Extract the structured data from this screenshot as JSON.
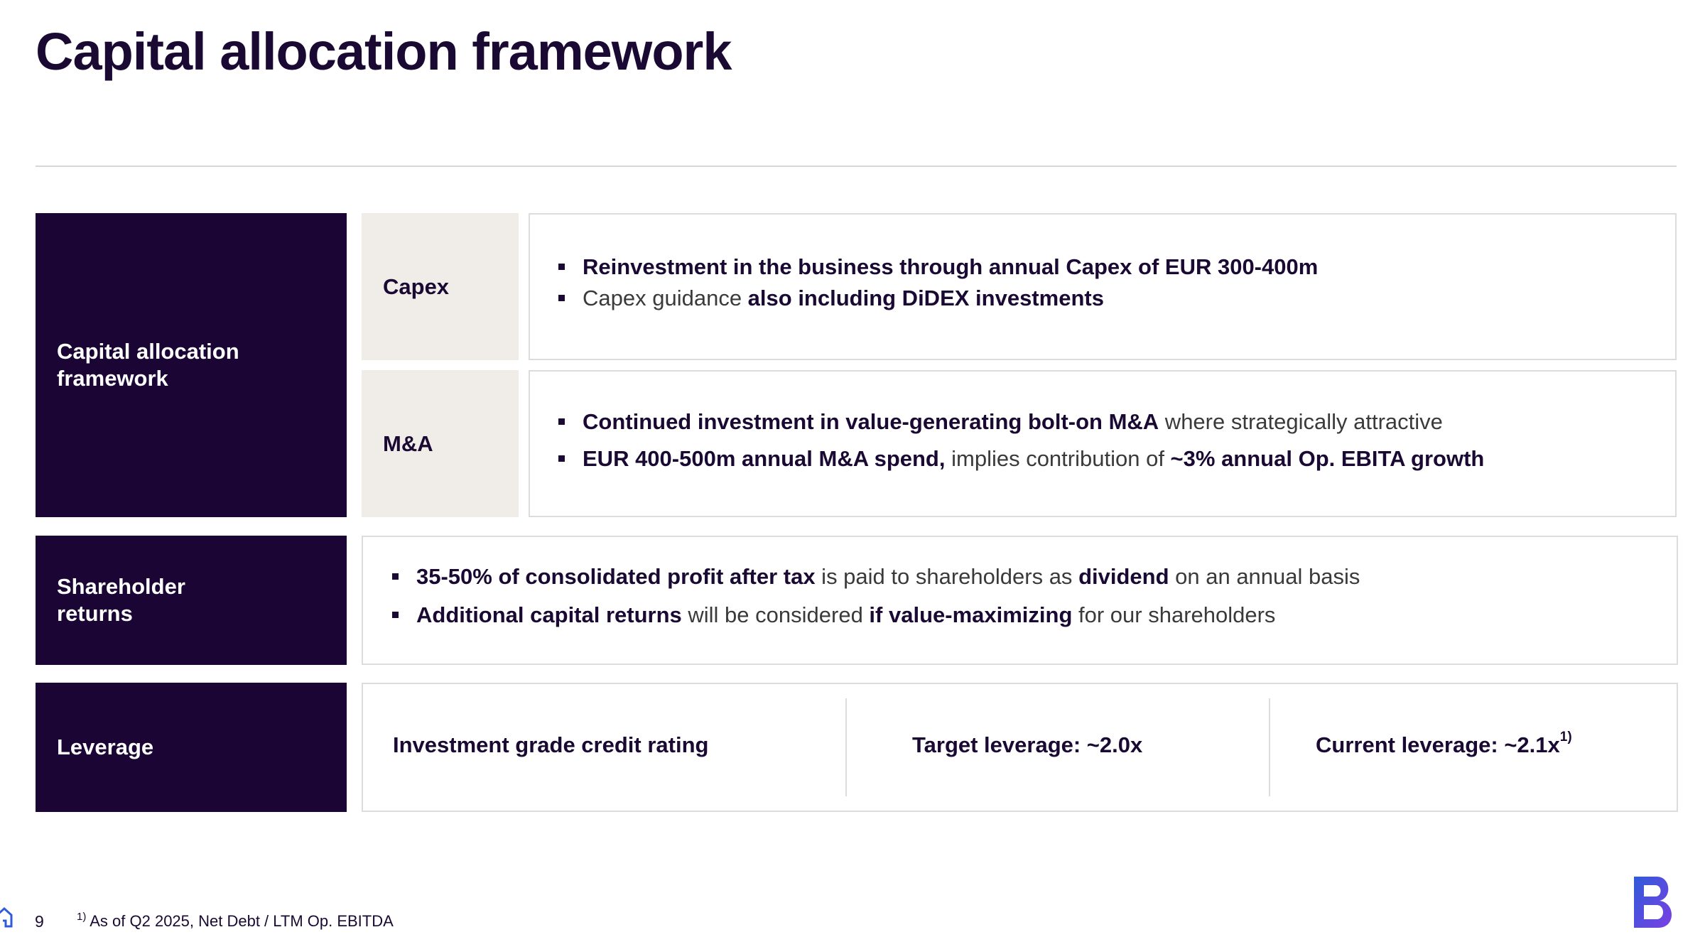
{
  "page": {
    "title": "Capital allocation framework",
    "page_number": "9",
    "footnote_marker": "1)",
    "footnote_text": "As of Q2 2025, Net Debt / LTM Op. EBITDA"
  },
  "capital_allocation": {
    "label_line1": "Capital allocation",
    "label_line2": "framework",
    "capex": {
      "label": "Capex",
      "bullet1_bold": "Reinvestment in the business through annual Capex of EUR 300-400m",
      "bullet2_normal": "Capex guidance ",
      "bullet2_bold": "also including DiDEX investments"
    },
    "ma": {
      "label": "M&A",
      "bullet1_bold": "Continued investment in value-generating bolt-on M&A",
      "bullet1_normal": " where strategically attractive",
      "bullet2_bold1": "EUR 400-500m annual M&A spend,",
      "bullet2_normal": " implies contribution of ",
      "bullet2_bold2": "~3% annual Op. EBITA growth"
    }
  },
  "shareholder_returns": {
    "label_line1": "Shareholder",
    "label_line2": "returns",
    "bullet1_bold1": "35-50% of consolidated profit after tax",
    "bullet1_normal1": " is paid to shareholders as ",
    "bullet1_bold2": "dividend",
    "bullet1_normal2": " on an annual basis",
    "bullet2_bold1": "Additional capital returns",
    "bullet2_normal1": " will be considered ",
    "bullet2_bold2": "if value-maximizing",
    "bullet2_normal2": " for our shareholders"
  },
  "leverage": {
    "label": "Leverage",
    "item1": "Investment grade credit rating",
    "item2": "Target leverage: ~2.0x",
    "item3": "Current leverage: ~2.1x",
    "item3_sup": "1)"
  },
  "colors": {
    "dark": "#1b0535",
    "beige": "#f0ede8",
    "border": "#dcdcdc",
    "logo_gradient_start": "#2f5bd8",
    "logo_gradient_end": "#7b3fe4"
  },
  "icons": [
    "home-icon",
    "company-logo"
  ]
}
